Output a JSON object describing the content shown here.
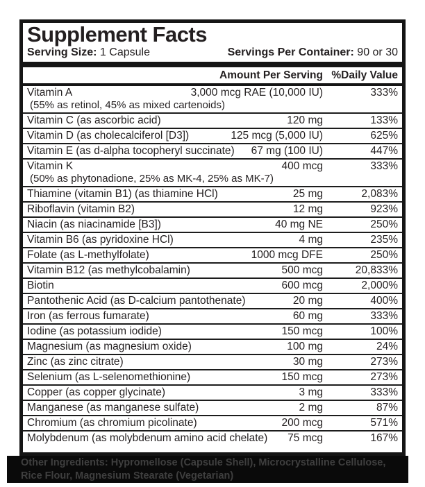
{
  "label": {
    "title": "Supplement Facts",
    "serving_size_label": "Serving Size:",
    "serving_size_value": " 1 Capsule",
    "servings_per_container_label": "Servings Per Container:",
    "servings_per_container_value": " 90 or 30",
    "columns": {
      "amount": "Amount Per Serving",
      "daily_value": "%Daily Value"
    },
    "rows": [
      {
        "name": "Vitamin A",
        "amount": "3,000 mcg RAE (10,000 IU)",
        "dv": "333%",
        "sub": "(55% as retinol, 45% as mixed cartenoids)"
      },
      {
        "name": "Vitamin C (as ascorbic acid)",
        "amount": "120 mg",
        "dv": "133%"
      },
      {
        "name": "Vitamin D (as cholecalciferol [D3])",
        "amount": "125 mcg (5,000 IU)",
        "dv": "625%"
      },
      {
        "name": "Vitamin E (as d-alpha tocopheryl succinate)",
        "amount": "67 mg (100 IU)",
        "dv": "447%"
      },
      {
        "name": "Vitamin K",
        "amount": "400 mcg",
        "dv": "333%",
        "sub": "(50% as phytonadione, 25% as MK-4, 25% as MK-7)"
      },
      {
        "name": "Thiamine (vitamin B1) (as thiamine HCl)",
        "amount": "25 mg",
        "dv": "2,083%"
      },
      {
        "name": "Riboflavin (vitamin B2)",
        "amount": "12 mg",
        "dv": "923%"
      },
      {
        "name": "Niacin (as niacinamide [B3])",
        "amount": "40 mg NE",
        "dv": "250%"
      },
      {
        "name": "Vitamin B6 (as pyridoxine HCl)",
        "amount": "4 mg",
        "dv": "235%"
      },
      {
        "name": "Folate (as L-methylfolate)",
        "amount": "1000 mcg DFE",
        "dv": "250%"
      },
      {
        "name": "Vitamin B12 (as methylcobalamin)",
        "amount": "500 mcg",
        "dv": "20,833%"
      },
      {
        "name": "Biotin",
        "amount": "600 mcg",
        "dv": "2,000%"
      },
      {
        "name": "Pantothenic Acid (as D-calcium pantothenate)",
        "amount": "20 mg",
        "dv": "400%"
      },
      {
        "name": "Iron (as ferrous fumarate)",
        "amount": "60 mg",
        "dv": "333%"
      },
      {
        "name": "Iodine (as potassium iodide)",
        "amount": "150 mcg",
        "dv": "100%"
      },
      {
        "name": "Magnesium (as magnesium oxide)",
        "amount": "100 mg",
        "dv": "24%"
      },
      {
        "name": "Zinc (as zinc citrate)",
        "amount": "30 mg",
        "dv": "273%"
      },
      {
        "name": "Selenium (as L-selenomethionine)",
        "amount": "150 mcg",
        "dv": "273%"
      },
      {
        "name": "Copper (as copper glycinate)",
        "amount": "3 mg",
        "dv": "333%"
      },
      {
        "name": "Manganese (as manganese sulfate)",
        "amount": "2 mg",
        "dv": "87%"
      },
      {
        "name": "Chromium (as chromium picolinate)",
        "amount": "200 mcg",
        "dv": "571%"
      },
      {
        "name": "Molybdenum (as molybdenum amino acid chelate)",
        "amount": "75 mcg",
        "dv": "167%"
      }
    ],
    "other_ingredients_label": "Other Ingredients:",
    "other_ingredients_text": " Hypromellose (Capsule Shell), Microcrystalline Cellulose, Rice Flour, Magnesium Stearate (Vegetarian)",
    "colors": {
      "text": "#231f20",
      "rule": "#1c1c1c",
      "band_background": "#0a0a0a",
      "band_text": "#3f3f3f"
    }
  }
}
